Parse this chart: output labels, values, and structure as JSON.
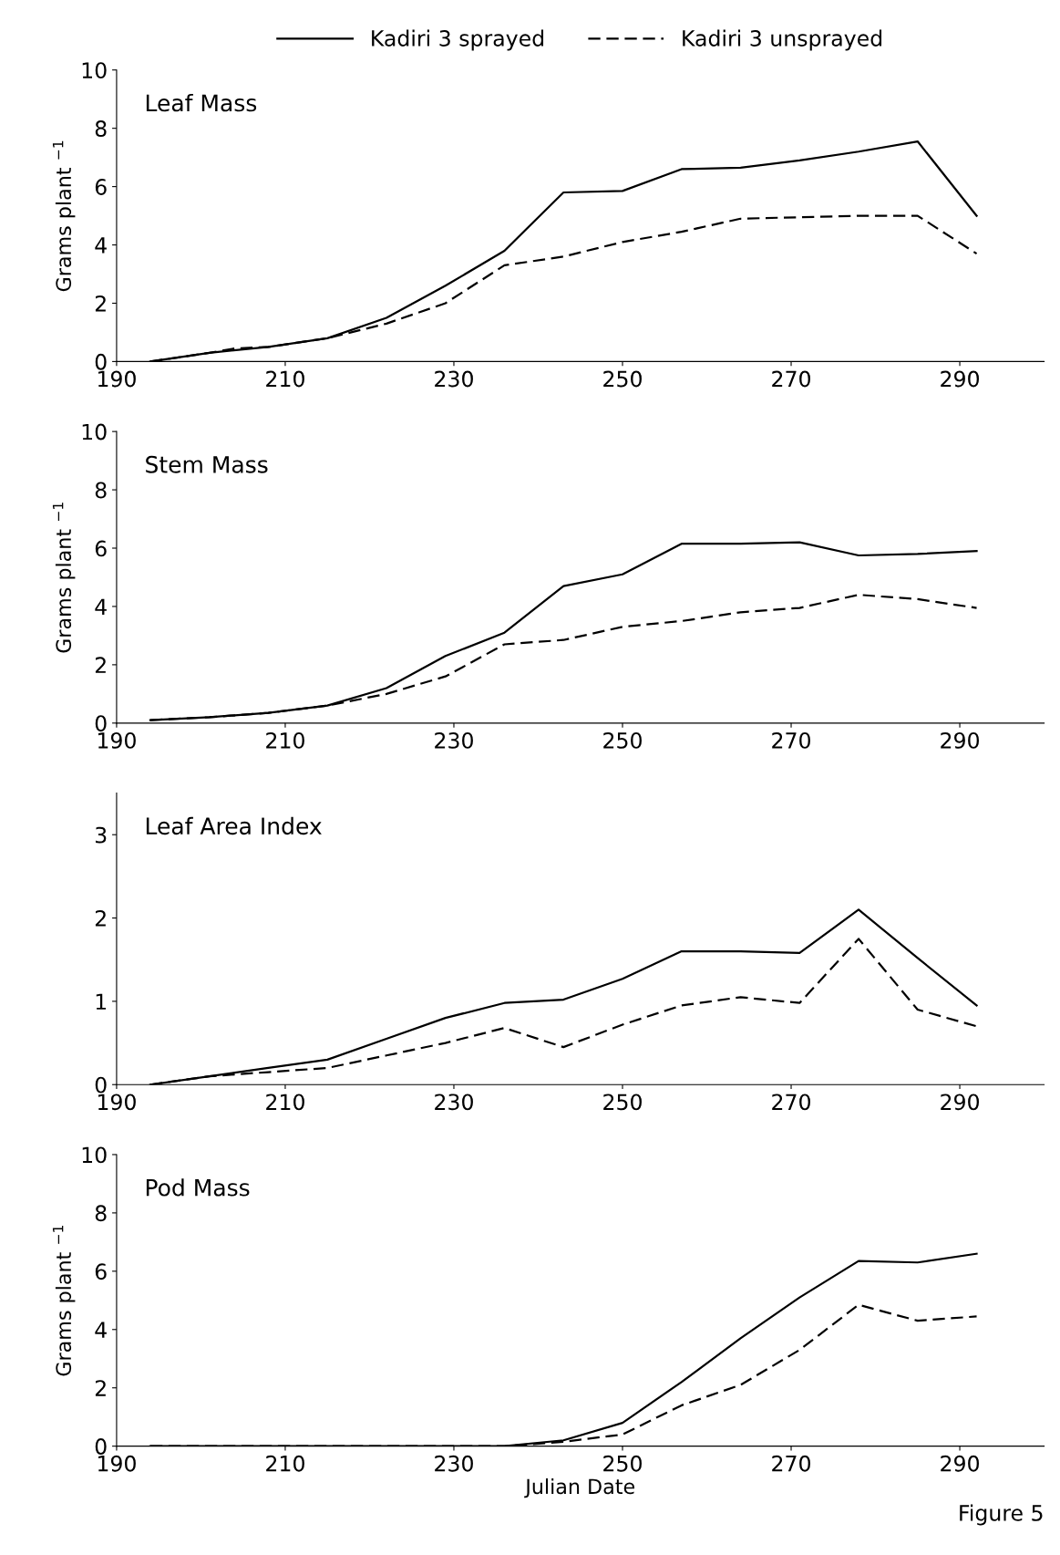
{
  "chart_data": [
    {
      "type": "line",
      "title": "Leaf Mass",
      "ylabel": "Grams plant $^{−1}$",
      "xlim": [
        190,
        300
      ],
      "xticks": [
        190,
        210,
        230,
        250,
        270,
        290
      ],
      "ylim": [
        0,
        10
      ],
      "yticks": [
        0,
        2,
        4,
        6,
        8,
        10
      ],
      "grid": false,
      "legend": "top",
      "marker": "none",
      "series": [
        {
          "name": "Kadiri 3 sprayed",
          "color": "#000000",
          "line_style": "solid",
          "x": [
            194,
            201,
            208,
            215,
            222,
            229,
            236,
            243,
            250,
            257,
            264,
            271,
            278,
            285,
            292
          ],
          "values": [
            0,
            0.3,
            0.5,
            0.8,
            1.5,
            2.6,
            3.8,
            5.8,
            5.85,
            6.6,
            6.65,
            6.9,
            7.2,
            7.55,
            5.0
          ]
        },
        {
          "name": "Kadiri 3 unsprayed",
          "color": "#000000",
          "line_style": "dashed",
          "x": [
            194,
            201,
            204,
            208,
            215,
            222,
            229,
            236,
            243,
            250,
            257,
            264,
            271,
            278,
            285,
            292
          ],
          "values": [
            0,
            0.3,
            0.45,
            0.5,
            0.8,
            1.3,
            2.0,
            3.3,
            3.6,
            4.1,
            4.45,
            4.9,
            4.95,
            5.0,
            5.0,
            3.7
          ]
        }
      ]
    },
    {
      "type": "line",
      "title": "Stem Mass",
      "ylabel": "Grams plant $^{−1}$",
      "xlim": [
        190,
        300
      ],
      "xticks": [
        190,
        210,
        230,
        250,
        270,
        290
      ],
      "ylim": [
        0,
        10
      ],
      "yticks": [
        0,
        2,
        4,
        6,
        8,
        10
      ],
      "grid": false,
      "marker": "none",
      "series": [
        {
          "color": "#000000",
          "line_style": "solid",
          "x": [
            194,
            201,
            208,
            215,
            222,
            229,
            236,
            243,
            250,
            257,
            264,
            271,
            278,
            285,
            292
          ],
          "values": [
            0.1,
            0.2,
            0.35,
            0.6,
            1.2,
            2.3,
            3.1,
            4.7,
            5.1,
            6.15,
            6.15,
            6.2,
            5.75,
            5.8,
            5.9
          ]
        },
        {
          "color": "#000000",
          "line_style": "dashed",
          "x": [
            194,
            201,
            208,
            215,
            222,
            229,
            236,
            243,
            250,
            257,
            264,
            271,
            278,
            285,
            292
          ],
          "values": [
            0.1,
            0.2,
            0.35,
            0.6,
            1.0,
            1.6,
            2.7,
            2.85,
            3.3,
            3.5,
            3.8,
            3.95,
            4.4,
            4.25,
            3.95
          ]
        }
      ]
    },
    {
      "type": "line",
      "title": "Leaf Area Index",
      "xlim": [
        190,
        300
      ],
      "xticks": [
        190,
        210,
        230,
        250,
        270,
        290
      ],
      "ylim": [
        0,
        3.5
      ],
      "yticks": [
        0,
        1,
        2,
        3
      ],
      "grid": false,
      "marker": "none",
      "series": [
        {
          "color": "#000000",
          "line_style": "solid",
          "x": [
            194,
            201,
            208,
            215,
            222,
            229,
            236,
            243,
            250,
            257,
            264,
            271,
            278,
            285,
            292
          ],
          "values": [
            0,
            0.1,
            0.2,
            0.3,
            0.55,
            0.8,
            0.98,
            1.02,
            1.27,
            1.6,
            1.6,
            1.58,
            2.1,
            1.52,
            0.95
          ]
        },
        {
          "color": "#000000",
          "line_style": "dashed",
          "x": [
            194,
            201,
            208,
            215,
            222,
            229,
            236,
            243,
            250,
            257,
            264,
            271,
            278,
            285,
            292
          ],
          "values": [
            0,
            0.1,
            0.15,
            0.2,
            0.35,
            0.5,
            0.68,
            0.45,
            0.72,
            0.95,
            1.05,
            0.98,
            1.75,
            0.9,
            0.7
          ]
        }
      ]
    },
    {
      "type": "line",
      "title": "Pod Mass",
      "ylabel": "Grams plant $^{−1}$",
      "xlabel": "Julian Date",
      "xlim": [
        190,
        300
      ],
      "xticks": [
        190,
        210,
        230,
        250,
        270,
        290
      ],
      "ylim": [
        0,
        10
      ],
      "yticks": [
        0,
        2,
        4,
        6,
        8,
        10
      ],
      "grid": false,
      "marker": "none",
      "annotations": [
        "Figure 5"
      ],
      "series": [
        {
          "color": "#000000",
          "line_style": "solid",
          "x": [
            194,
            201,
            208,
            215,
            222,
            229,
            236,
            243,
            250,
            257,
            264,
            271,
            278,
            285,
            292
          ],
          "values": [
            0,
            0,
            0,
            0,
            0,
            0,
            0,
            0.2,
            0.8,
            2.2,
            3.7,
            5.1,
            6.35,
            6.3,
            6.6
          ]
        },
        {
          "color": "#000000",
          "line_style": "dashed",
          "x": [
            194,
            201,
            208,
            215,
            222,
            229,
            236,
            243,
            250,
            257,
            264,
            271,
            278,
            285,
            292
          ],
          "values": [
            0,
            0,
            0,
            0,
            0,
            0,
            0,
            0.15,
            0.4,
            1.4,
            2.1,
            3.3,
            4.85,
            4.3,
            4.45
          ]
        }
      ]
    }
  ]
}
